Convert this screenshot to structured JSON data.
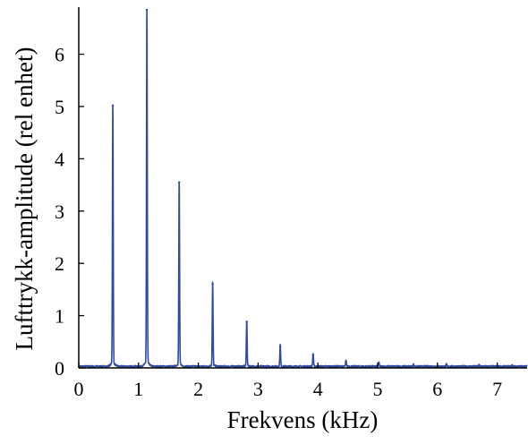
{
  "chart_data": {
    "type": "line",
    "xlabel": "Frekvens (kHz)",
    "ylabel": "Lufttrykk-amplitude (rel enhet)",
    "xlim": [
      0,
      7.5
    ],
    "ylim": [
      0,
      6.9
    ],
    "xticks": [
      0,
      1,
      2,
      3,
      4,
      5,
      6,
      7
    ],
    "yticks": [
      0,
      1,
      2,
      3,
      4,
      5,
      6
    ],
    "grid": false,
    "line_color": "#2f4a9e",
    "peaks": {
      "x": [
        0.57,
        1.14,
        1.68,
        2.24,
        2.81,
        3.37,
        3.92,
        4.47,
        5.02,
        5.6,
        6.15,
        6.7,
        7.25
      ],
      "y": [
        5.02,
        6.85,
        3.55,
        1.6,
        0.88,
        0.41,
        0.25,
        0.11,
        0.08,
        0.04,
        0.04,
        0.03,
        0.02
      ]
    }
  }
}
